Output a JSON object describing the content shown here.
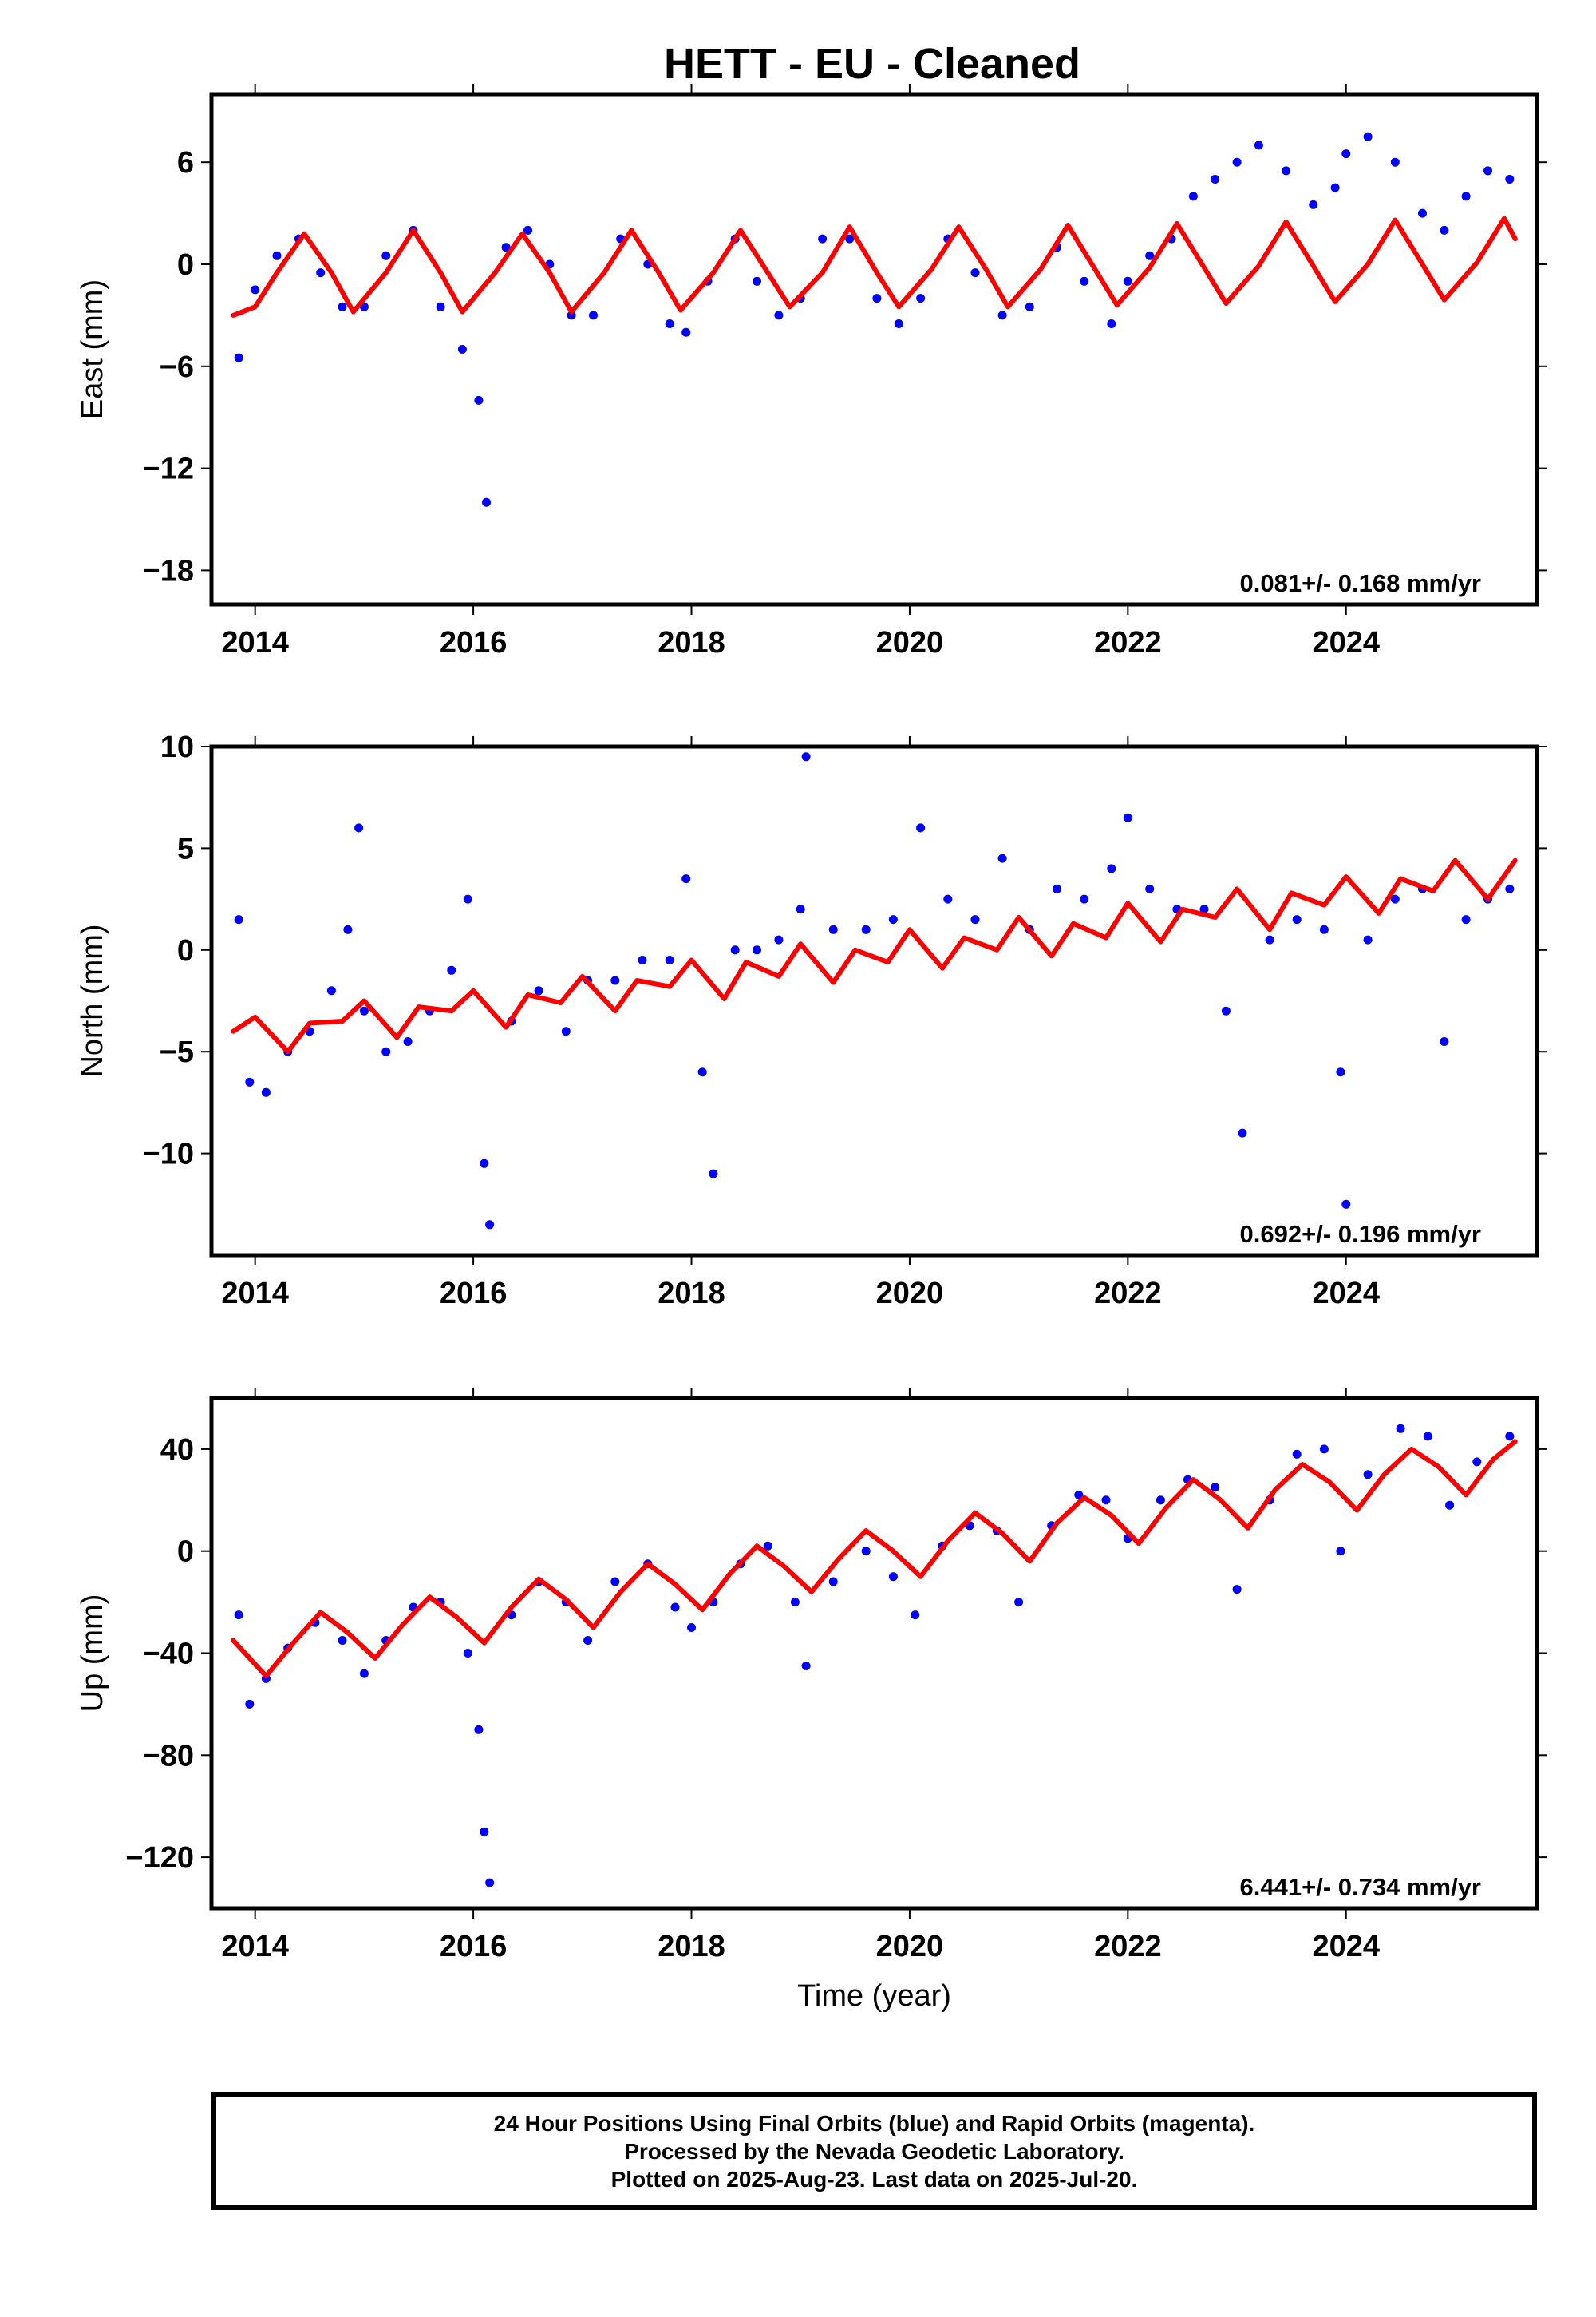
{
  "title": "HETT  - EU - Cleaned",
  "footer": {
    "line1": "24 Hour Positions Using Final Orbits (blue) and Rapid Orbits (magenta).",
    "line2": "Processed by the Nevada Geodetic Laboratory.",
    "line3": "Plotted on 2025-Aug-23. Last data on 2025-Jul-20."
  },
  "colors": {
    "observations": "#0000ff",
    "model": "#ff0000",
    "frame": "#000000"
  },
  "chart_data": [
    {
      "type": "scatter",
      "component": "east",
      "ylabel": "East (mm)",
      "xlim": [
        2013.6,
        2025.75
      ],
      "ylim": [
        -20,
        10
      ],
      "xticks": [
        "2014",
        "2016",
        "2018",
        "2020",
        "2022",
        "2024"
      ],
      "yticks": [
        "6",
        "0",
        "−6",
        "−12",
        "−18"
      ],
      "rate_label": "0.081+/- 0.168 mm/yr",
      "grid": false,
      "observations": {
        "x": [
          2013.85,
          2014.0,
          2014.2,
          2014.4,
          2014.6,
          2014.8,
          2015.0,
          2015.2,
          2015.45,
          2015.7,
          2015.9,
          2016.05,
          2016.12,
          2016.3,
          2016.5,
          2016.7,
          2016.9,
          2017.1,
          2017.35,
          2017.6,
          2017.8,
          2017.95,
          2018.15,
          2018.4,
          2018.6,
          2018.8,
          2019.0,
          2019.2,
          2019.45,
          2019.7,
          2019.9,
          2020.1,
          2020.35,
          2020.6,
          2020.85,
          2021.1,
          2021.35,
          2021.6,
          2021.85,
          2022.0,
          2022.2,
          2022.4,
          2022.6,
          2022.8,
          2023.0,
          2023.2,
          2023.45,
          2023.7,
          2023.9,
          2024.0,
          2024.2,
          2024.45,
          2024.7,
          2024.9,
          2025.1,
          2025.3,
          2025.5
        ],
        "y": [
          -5.5,
          -1.5,
          0.5,
          1.5,
          -0.5,
          -2.5,
          -2.5,
          0.5,
          2.0,
          -2.5,
          -5.0,
          -8.0,
          -14.0,
          1.0,
          2.0,
          0.0,
          -3.0,
          -3.0,
          1.5,
          0.0,
          -3.5,
          -4.0,
          -1.0,
          1.5,
          -1.0,
          -3.0,
          -2.0,
          1.5,
          1.5,
          -2.0,
          -3.5,
          -2.0,
          1.5,
          -0.5,
          -3.0,
          -2.5,
          1.0,
          -1.0,
          -3.5,
          -1.0,
          0.5,
          1.5,
          4.0,
          5.0,
          6.0,
          7.0,
          5.5,
          3.5,
          4.5,
          6.5,
          7.5,
          6.0,
          3.0,
          2.0,
          4.0,
          5.5,
          5.0
        ]
      },
      "model": {
        "x": [
          2013.8,
          2014.0,
          2014.2,
          2014.45,
          2014.7,
          2014.9,
          2015.2,
          2015.45,
          2015.7,
          2015.9,
          2016.2,
          2016.45,
          2016.7,
          2016.9,
          2017.2,
          2017.45,
          2017.7,
          2017.9,
          2018.2,
          2018.45,
          2018.7,
          2018.9,
          2019.2,
          2019.45,
          2019.7,
          2019.9,
          2020.2,
          2020.45,
          2020.7,
          2020.9,
          2021.2,
          2021.45,
          2021.7,
          2021.9,
          2022.2,
          2022.45,
          2022.7,
          2022.9,
          2023.2,
          2023.45,
          2023.7,
          2023.9,
          2024.2,
          2024.45,
          2024.7,
          2024.9,
          2025.2,
          2025.45,
          2025.55
        ],
        "y": [
          -3.0,
          -2.5,
          -0.5,
          1.8,
          -0.5,
          -2.8,
          -0.5,
          2.0,
          -0.5,
          -2.8,
          -0.5,
          1.8,
          -0.5,
          -2.8,
          -0.5,
          2.0,
          -0.5,
          -2.7,
          -0.5,
          2.0,
          -0.5,
          -2.5,
          -0.5,
          2.2,
          -0.5,
          -2.5,
          -0.3,
          2.2,
          -0.3,
          -2.5,
          -0.3,
          2.3,
          -0.3,
          -2.4,
          -0.2,
          2.4,
          -0.2,
          -2.3,
          -0.1,
          2.5,
          -0.1,
          -2.2,
          0.0,
          2.6,
          0.0,
          -2.1,
          0.1,
          2.7,
          1.5
        ]
      }
    },
    {
      "type": "scatter",
      "component": "north",
      "ylabel": "North (mm)",
      "xlim": [
        2013.6,
        2025.75
      ],
      "ylim": [
        -15,
        10
      ],
      "xticks": [
        "2014",
        "2016",
        "2018",
        "2020",
        "2022",
        "2024"
      ],
      "yticks": [
        "10",
        "5",
        "0",
        "−5",
        "−10"
      ],
      "rate_label": "0.692+/- 0.196 mm/yr",
      "grid": false,
      "observations": {
        "x": [
          2013.85,
          2013.95,
          2014.1,
          2014.3,
          2014.5,
          2014.7,
          2014.85,
          2014.95,
          2015.0,
          2015.2,
          2015.4,
          2015.6,
          2015.8,
          2015.95,
          2016.1,
          2016.15,
          2016.35,
          2016.6,
          2016.85,
          2017.05,
          2017.3,
          2017.55,
          2017.8,
          2017.95,
          2018.1,
          2018.2,
          2018.4,
          2018.6,
          2018.8,
          2019.0,
          2019.05,
          2019.3,
          2019.6,
          2019.85,
          2020.1,
          2020.35,
          2020.6,
          2020.85,
          2021.1,
          2021.35,
          2021.6,
          2021.85,
          2022.0,
          2022.2,
          2022.45,
          2022.7,
          2022.9,
          2023.05,
          2023.3,
          2023.55,
          2023.8,
          2023.95,
          2024.0,
          2024.2,
          2024.45,
          2024.7,
          2024.9,
          2025.1,
          2025.3,
          2025.5
        ],
        "y": [
          1.5,
          -6.5,
          -7.0,
          -5.0,
          -4.0,
          -2.0,
          1.0,
          6.0,
          -3.0,
          -5.0,
          -4.5,
          -3.0,
          -1.0,
          2.5,
          -10.5,
          -13.5,
          -3.5,
          -2.0,
          -4.0,
          -1.5,
          -1.5,
          -0.5,
          -0.5,
          3.5,
          -6.0,
          -11.0,
          0.0,
          0.0,
          0.5,
          2.0,
          9.5,
          1.0,
          1.0,
          1.5,
          6.0,
          2.5,
          1.5,
          4.5,
          1.0,
          3.0,
          2.5,
          4.0,
          6.5,
          3.0,
          2.0,
          2.0,
          -3.0,
          -9.0,
          0.5,
          1.5,
          1.0,
          -6.0,
          -12.5,
          0.5,
          2.5,
          3.0,
          -4.5,
          1.5,
          2.5,
          3.0
        ]
      },
      "model": {
        "x": [
          2013.8,
          2014.0,
          2014.3,
          2014.5,
          2014.8,
          2015.0,
          2015.3,
          2015.5,
          2015.8,
          2016.0,
          2016.3,
          2016.5,
          2016.8,
          2017.0,
          2017.3,
          2017.5,
          2017.8,
          2018.0,
          2018.3,
          2018.5,
          2018.8,
          2019.0,
          2019.3,
          2019.5,
          2019.8,
          2020.0,
          2020.3,
          2020.5,
          2020.8,
          2021.0,
          2021.3,
          2021.5,
          2021.8,
          2022.0,
          2022.3,
          2022.5,
          2022.8,
          2023.0,
          2023.3,
          2023.5,
          2023.8,
          2024.0,
          2024.3,
          2024.5,
          2024.8,
          2025.0,
          2025.3,
          2025.55
        ],
        "y": [
          -4.0,
          -3.3,
          -5.0,
          -3.6,
          -3.5,
          -2.5,
          -4.3,
          -2.8,
          -3.0,
          -2.0,
          -3.8,
          -2.2,
          -2.6,
          -1.3,
          -3.0,
          -1.5,
          -1.8,
          -0.5,
          -2.4,
          -0.6,
          -1.3,
          0.3,
          -1.6,
          0.0,
          -0.6,
          1.0,
          -0.9,
          0.6,
          0.0,
          1.6,
          -0.3,
          1.3,
          0.6,
          2.3,
          0.4,
          2.0,
          1.6,
          3.0,
          1.0,
          2.8,
          2.2,
          3.6,
          1.8,
          3.5,
          2.9,
          4.4,
          2.5,
          4.4
        ]
      }
    },
    {
      "type": "scatter",
      "component": "up",
      "ylabel": "Up (mm)",
      "xlabel": "Time (year)",
      "xlim": [
        2013.6,
        2025.75
      ],
      "ylim": [
        -140,
        60
      ],
      "xticks": [
        "2014",
        "2016",
        "2018",
        "2020",
        "2022",
        "2024"
      ],
      "yticks": [
        "40",
        "0",
        "−40",
        "−80",
        "−120"
      ],
      "rate_label": "6.441+/- 0.734 mm/yr",
      "grid": false,
      "observations": {
        "x": [
          2013.85,
          2013.95,
          2014.1,
          2014.3,
          2014.55,
          2014.8,
          2015.0,
          2015.2,
          2015.45,
          2015.7,
          2015.95,
          2016.05,
          2016.1,
          2016.15,
          2016.35,
          2016.6,
          2016.85,
          2017.05,
          2017.3,
          2017.6,
          2017.85,
          2018.0,
          2018.2,
          2018.45,
          2018.7,
          2018.95,
          2019.05,
          2019.3,
          2019.6,
          2019.85,
          2020.05,
          2020.3,
          2020.55,
          2020.8,
          2021.0,
          2021.3,
          2021.55,
          2021.8,
          2022.0,
          2022.3,
          2022.55,
          2022.8,
          2023.0,
          2023.3,
          2023.55,
          2023.8,
          2023.95,
          2024.2,
          2024.5,
          2024.75,
          2024.95,
          2025.2,
          2025.5
        ],
        "y": [
          -25,
          -60,
          -50,
          -38,
          -28,
          -35,
          -48,
          -35,
          -22,
          -20,
          -40,
          -70,
          -110,
          -130,
          -25,
          -12,
          -20,
          -35,
          -12,
          -5,
          -22,
          -30,
          -20,
          -5,
          2,
          -20,
          -45,
          -12,
          0,
          -10,
          -25,
          2,
          10,
          8,
          -20,
          10,
          22,
          20,
          5,
          20,
          28,
          25,
          -15,
          20,
          38,
          40,
          0,
          30,
          48,
          45,
          18,
          35,
          45
        ]
      },
      "model": {
        "x": [
          2013.8,
          2014.1,
          2014.35,
          2014.6,
          2014.85,
          2015.1,
          2015.35,
          2015.6,
          2015.85,
          2016.1,
          2016.35,
          2016.6,
          2016.85,
          2017.1,
          2017.35,
          2017.6,
          2017.85,
          2018.1,
          2018.35,
          2018.6,
          2018.85,
          2019.1,
          2019.35,
          2019.6,
          2019.85,
          2020.1,
          2020.35,
          2020.6,
          2020.85,
          2021.1,
          2021.35,
          2021.6,
          2021.85,
          2022.1,
          2022.35,
          2022.6,
          2022.85,
          2023.1,
          2023.35,
          2023.6,
          2023.85,
          2024.1,
          2024.35,
          2024.6,
          2024.85,
          2025.1,
          2025.35,
          2025.55
        ],
        "y": [
          -35,
          -49,
          -36,
          -24,
          -32,
          -42,
          -29,
          -18,
          -26,
          -36,
          -22,
          -11,
          -19,
          -30,
          -16,
          -5,
          -13,
          -23,
          -9,
          2,
          -6,
          -16,
          -3,
          8,
          0,
          -10,
          4,
          15,
          7,
          -4,
          11,
          21,
          14,
          3,
          17,
          28,
          20,
          9,
          24,
          34,
          27,
          16,
          30,
          40,
          33,
          22,
          36,
          43
        ]
      }
    }
  ]
}
